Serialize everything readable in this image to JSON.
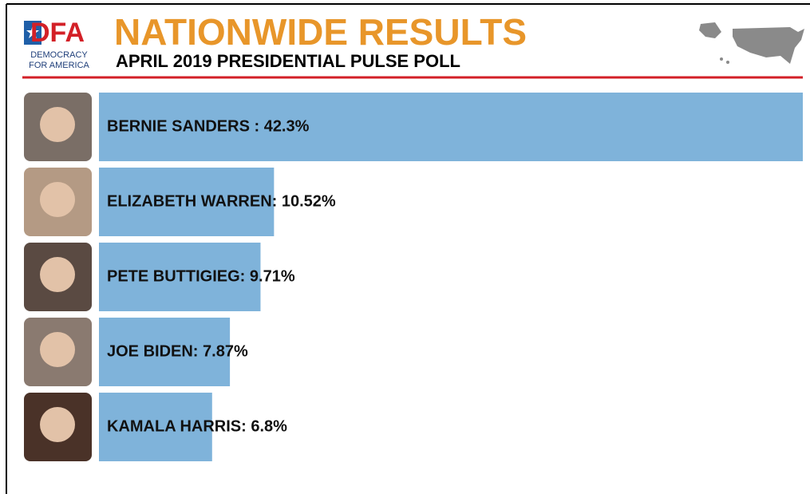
{
  "chart_data": {
    "type": "bar",
    "title": "NATIONWIDE RESULTS",
    "subtitle": "APRIL 2019 PRESIDENTIAL PULSE POLL",
    "logo": {
      "mark": "DFA",
      "lines": [
        "DEMOCRACY",
        "FOR AMERICA"
      ]
    },
    "categories": [
      "BERNIE SANDERS : 42.3%",
      "ELIZABETH WARREN: 10.52%",
      "PETE BUTTIGIEG: 9.71%",
      "JOE BIDEN: 7.87%",
      "KAMALA HARRIS: 6.8%"
    ],
    "values": [
      42.3,
      10.52,
      9.71,
      7.87,
      6.8
    ],
    "color": "#7fb3da",
    "xlim": [
      0,
      42.3
    ]
  }
}
